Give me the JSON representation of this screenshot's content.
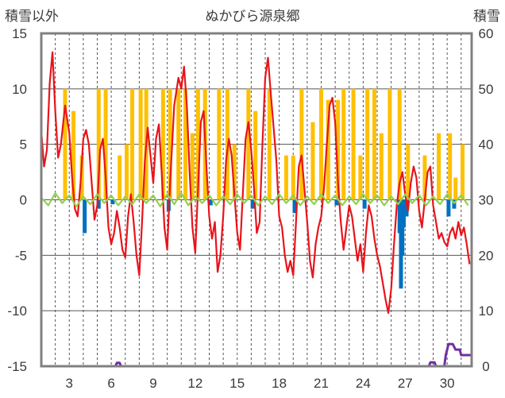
{
  "chart_data": {
    "type": "line",
    "title": "ぬかびら源泉郷",
    "ylabel_left": "積雪以外",
    "ylabel_right": "積雪",
    "ylim_left": [
      -15,
      15
    ],
    "ylim_right": [
      0,
      60
    ],
    "yticks_left": [
      "15",
      "10",
      "5",
      "0",
      "-5",
      "-10",
      "-15"
    ],
    "yticks_right": [
      "60",
      "50",
      "40",
      "30",
      "20",
      "10",
      "0"
    ],
    "xlim": [
      1,
      31
    ],
    "xticks": [
      "3",
      "6",
      "9",
      "12",
      "15",
      "18",
      "21",
      "24",
      "27",
      "30"
    ],
    "grid": true,
    "colors": {
      "temperature": "#e8141b",
      "sunshine": "#ffc000",
      "precipitation": "#0070c0",
      "wind": "#92d050",
      "snow_depth": "#7030a0",
      "frame": "#808080",
      "grid": "#555555"
    },
    "series": [
      {
        "name": "",
        "color": "#e8141b",
        "axis": "left",
        "points": [
          [
            1.0,
            6.2
          ],
          [
            1.2,
            3.0
          ],
          [
            1.4,
            4.5
          ],
          [
            1.6,
            10.5
          ],
          [
            1.8,
            13.3
          ],
          [
            2.0,
            8.0
          ],
          [
            2.2,
            3.8
          ],
          [
            2.4,
            5.0
          ],
          [
            2.7,
            8.5
          ],
          [
            3.0,
            6.0
          ],
          [
            3.2,
            2.0
          ],
          [
            3.4,
            -0.8
          ],
          [
            3.6,
            -1.5
          ],
          [
            3.8,
            1.5
          ],
          [
            4.0,
            5.5
          ],
          [
            4.2,
            6.3
          ],
          [
            4.4,
            5.0
          ],
          [
            4.6,
            1.5
          ],
          [
            4.8,
            -1.8
          ],
          [
            5.0,
            -0.5
          ],
          [
            5.2,
            4.5
          ],
          [
            5.4,
            5.5
          ],
          [
            5.6,
            2.0
          ],
          [
            5.8,
            -2.5
          ],
          [
            6.0,
            -4.0
          ],
          [
            6.2,
            -3.0
          ],
          [
            6.4,
            -1.0
          ],
          [
            6.6,
            -2.5
          ],
          [
            6.8,
            -4.5
          ],
          [
            7.0,
            -5.2
          ],
          [
            7.2,
            -1.5
          ],
          [
            7.4,
            0.5
          ],
          [
            7.6,
            -2.0
          ],
          [
            7.8,
            -5.0
          ],
          [
            8.0,
            -6.8
          ],
          [
            8.2,
            -2.0
          ],
          [
            8.4,
            3.5
          ],
          [
            8.6,
            6.5
          ],
          [
            8.8,
            4.0
          ],
          [
            9.0,
            1.5
          ],
          [
            9.2,
            5.5
          ],
          [
            9.4,
            6.8
          ],
          [
            9.6,
            2.5
          ],
          [
            9.8,
            -2.5
          ],
          [
            10.0,
            -4.5
          ],
          [
            10.2,
            1.5
          ],
          [
            10.5,
            8.5
          ],
          [
            10.8,
            11.0
          ],
          [
            11.0,
            10.0
          ],
          [
            11.2,
            12.0
          ],
          [
            11.4,
            8.5
          ],
          [
            11.6,
            2.5
          ],
          [
            11.8,
            -2.5
          ],
          [
            12.0,
            -4.8
          ],
          [
            12.2,
            1.0
          ],
          [
            12.4,
            7.0
          ],
          [
            12.6,
            8.0
          ],
          [
            12.8,
            3.0
          ],
          [
            13.0,
            -1.5
          ],
          [
            13.2,
            -3.5
          ],
          [
            13.4,
            -2.0
          ],
          [
            13.6,
            -6.5
          ],
          [
            13.8,
            -5.0
          ],
          [
            14.0,
            -1.5
          ],
          [
            14.2,
            3.5
          ],
          [
            14.4,
            5.5
          ],
          [
            14.6,
            4.0
          ],
          [
            14.8,
            0.5
          ],
          [
            15.0,
            -3.0
          ],
          [
            15.2,
            -4.5
          ],
          [
            15.4,
            0.5
          ],
          [
            15.6,
            5.5
          ],
          [
            15.8,
            7.0
          ],
          [
            16.0,
            4.5
          ],
          [
            16.2,
            1.0
          ],
          [
            16.4,
            -3.0
          ],
          [
            16.6,
            -2.0
          ],
          [
            16.8,
            5.0
          ],
          [
            17.0,
            11.0
          ],
          [
            17.2,
            12.8
          ],
          [
            17.4,
            9.5
          ],
          [
            17.6,
            6.5
          ],
          [
            17.8,
            3.5
          ],
          [
            18.0,
            -1.5
          ],
          [
            18.2,
            -2.5
          ],
          [
            18.4,
            -5.0
          ],
          [
            18.6,
            -6.5
          ],
          [
            18.8,
            -5.5
          ],
          [
            19.0,
            -6.8
          ],
          [
            19.2,
            -2.0
          ],
          [
            19.4,
            3.0
          ],
          [
            19.6,
            4.0
          ],
          [
            19.8,
            1.0
          ],
          [
            20.0,
            -2.0
          ],
          [
            20.2,
            -5.5
          ],
          [
            20.4,
            -7.0
          ],
          [
            20.6,
            -4.0
          ],
          [
            20.8,
            -2.5
          ],
          [
            21.0,
            -1.5
          ],
          [
            21.2,
            1.0
          ],
          [
            21.4,
            5.0
          ],
          [
            21.6,
            8.5
          ],
          [
            21.8,
            9.2
          ],
          [
            22.0,
            7.0
          ],
          [
            22.2,
            1.5
          ],
          [
            22.4,
            -2.0
          ],
          [
            22.6,
            -4.5
          ],
          [
            22.8,
            -2.5
          ],
          [
            23.0,
            -0.5
          ],
          [
            23.2,
            -1.5
          ],
          [
            23.4,
            -3.5
          ],
          [
            23.6,
            -5.5
          ],
          [
            23.8,
            -4.0
          ],
          [
            24.0,
            -6.5
          ],
          [
            24.2,
            -3.0
          ],
          [
            24.4,
            -0.5
          ],
          [
            24.6,
            -1.5
          ],
          [
            24.8,
            -3.5
          ],
          [
            25.0,
            -5.0
          ],
          [
            25.2,
            -6.0
          ],
          [
            25.4,
            -7.5
          ],
          [
            25.6,
            -9.0
          ],
          [
            25.8,
            -10.2
          ],
          [
            26.0,
            -8.0
          ],
          [
            26.2,
            -4.0
          ],
          [
            26.4,
            -0.5
          ],
          [
            26.6,
            1.5
          ],
          [
            26.8,
            2.5
          ],
          [
            27.0,
            0.5
          ],
          [
            27.2,
            -1.0
          ],
          [
            27.4,
            1.5
          ],
          [
            27.6,
            3.0
          ],
          [
            27.8,
            2.0
          ],
          [
            28.0,
            -1.0
          ],
          [
            28.2,
            -2.5
          ],
          [
            28.4,
            0.0
          ],
          [
            28.6,
            2.5
          ],
          [
            28.8,
            3.0
          ],
          [
            29.0,
            -0.5
          ],
          [
            29.2,
            -2.0
          ],
          [
            29.4,
            -3.5
          ],
          [
            29.6,
            -3.0
          ],
          [
            29.8,
            -3.8
          ],
          [
            30.0,
            -4.2
          ],
          [
            30.2,
            -3.0
          ],
          [
            30.4,
            -2.5
          ],
          [
            30.6,
            -3.5
          ],
          [
            30.8,
            -2.0
          ],
          [
            31.0,
            -3.2
          ],
          [
            31.2,
            -2.5
          ],
          [
            31.4,
            -4.0
          ],
          [
            31.6,
            -5.8
          ]
        ]
      },
      {
        "name": "",
        "color": "#92d050",
        "axis": "left",
        "points": [
          [
            1.0,
            0.2
          ],
          [
            1.5,
            -0.5
          ],
          [
            2.0,
            0.6
          ],
          [
            2.5,
            -0.3
          ],
          [
            3.0,
            0.4
          ],
          [
            3.5,
            -0.6
          ],
          [
            4.0,
            0.3
          ],
          [
            4.5,
            -0.4
          ],
          [
            5.0,
            0.5
          ],
          [
            5.5,
            -0.3
          ],
          [
            6.0,
            0.4
          ],
          [
            6.5,
            -0.5
          ],
          [
            7.0,
            0.3
          ],
          [
            7.5,
            -0.4
          ],
          [
            8.0,
            0.5
          ],
          [
            8.5,
            -0.3
          ],
          [
            9.0,
            0.4
          ],
          [
            9.5,
            -0.6
          ],
          [
            10.0,
            0.5
          ],
          [
            10.5,
            -0.4
          ],
          [
            11.0,
            0.6
          ],
          [
            11.5,
            -0.5
          ],
          [
            12.0,
            0.3
          ],
          [
            12.5,
            -0.3
          ],
          [
            13.0,
            0.4
          ],
          [
            13.5,
            -0.5
          ],
          [
            14.0,
            0.3
          ],
          [
            14.5,
            -0.4
          ],
          [
            15.0,
            0.5
          ],
          [
            15.5,
            -0.3
          ],
          [
            16.0,
            0.4
          ],
          [
            16.5,
            -0.5
          ],
          [
            17.0,
            0.3
          ],
          [
            17.5,
            -0.4
          ],
          [
            18.0,
            0.5
          ],
          [
            18.5,
            -0.3
          ],
          [
            19.0,
            0.4
          ],
          [
            19.5,
            -0.5
          ],
          [
            20.0,
            0.3
          ],
          [
            20.5,
            -0.4
          ],
          [
            21.0,
            0.5
          ],
          [
            21.5,
            -0.3
          ],
          [
            22.0,
            0.4
          ],
          [
            22.5,
            -0.5
          ],
          [
            23.0,
            0.3
          ],
          [
            23.5,
            -0.4
          ],
          [
            24.0,
            0.5
          ],
          [
            24.5,
            -0.3
          ],
          [
            25.0,
            0.4
          ],
          [
            25.5,
            -0.5
          ],
          [
            26.0,
            0.3
          ],
          [
            26.5,
            -0.4
          ],
          [
            27.0,
            0.5
          ],
          [
            27.5,
            -0.3
          ],
          [
            28.0,
            0.4
          ],
          [
            28.5,
            -0.5
          ],
          [
            29.0,
            0.3
          ],
          [
            29.5,
            -0.4
          ],
          [
            30.0,
            0.5
          ],
          [
            30.5,
            -0.3
          ],
          [
            31.0,
            0.4
          ],
          [
            31.5,
            -0.5
          ]
        ]
      },
      {
        "name": "",
        "color": "#7030a0",
        "axis": "right",
        "points": [
          [
            1.0,
            0
          ],
          [
            6.3,
            0
          ],
          [
            6.4,
            0.6
          ],
          [
            6.6,
            0.6
          ],
          [
            6.7,
            0
          ],
          [
            28.7,
            0
          ],
          [
            28.8,
            0.7
          ],
          [
            29.1,
            0.7
          ],
          [
            29.2,
            0
          ],
          [
            29.8,
            0
          ],
          [
            29.9,
            2.0
          ],
          [
            30.1,
            4.0
          ],
          [
            30.4,
            4.0
          ],
          [
            30.6,
            3.0
          ],
          [
            30.9,
            3.0
          ],
          [
            31.0,
            2.0
          ],
          [
            31.7,
            2.0
          ]
        ]
      }
    ],
    "bars": [
      {
        "name": "",
        "color": "#ffc000",
        "axis": "left",
        "values": [
          [
            2.7,
            10
          ],
          [
            3.3,
            8
          ],
          [
            3.9,
            4
          ],
          [
            5.1,
            10
          ],
          [
            5.6,
            10
          ],
          [
            6.6,
            4
          ],
          [
            7.1,
            5
          ],
          [
            7.5,
            10
          ],
          [
            8.1,
            10
          ],
          [
            8.5,
            10
          ],
          [
            9.7,
            10
          ],
          [
            10.2,
            10
          ],
          [
            10.8,
            10
          ],
          [
            11.3,
            10
          ],
          [
            11.8,
            6
          ],
          [
            12.2,
            10
          ],
          [
            12.7,
            10
          ],
          [
            13.7,
            10
          ],
          [
            14.3,
            10
          ],
          [
            14.8,
            5
          ],
          [
            15.8,
            10
          ],
          [
            16.3,
            8
          ],
          [
            17.3,
            10
          ],
          [
            18.5,
            4
          ],
          [
            19.0,
            4
          ],
          [
            19.6,
            10
          ],
          [
            20.4,
            7
          ],
          [
            21.0,
            10
          ],
          [
            21.5,
            9
          ],
          [
            22.2,
            9
          ],
          [
            22.6,
            10
          ],
          [
            23.3,
            10
          ],
          [
            23.8,
            4
          ],
          [
            24.3,
            10
          ],
          [
            24.8,
            10
          ],
          [
            25.3,
            6
          ],
          [
            25.9,
            10
          ],
          [
            26.6,
            10
          ],
          [
            27.2,
            5
          ],
          [
            28.4,
            4
          ],
          [
            29.4,
            6
          ],
          [
            30.2,
            6
          ],
          [
            30.6,
            2
          ],
          [
            31.1,
            5
          ]
        ]
      },
      {
        "name": "",
        "color": "#0070c0",
        "axis": "left",
        "values": [
          [
            4.1,
            -3.0
          ],
          [
            5.1,
            -0.8
          ],
          [
            6.1,
            -0.4
          ],
          [
            10.1,
            -1.0
          ],
          [
            13.1,
            -0.5
          ],
          [
            16.1,
            -0.8
          ],
          [
            19.1,
            -1.2
          ],
          [
            22.1,
            -0.5
          ],
          [
            24.1,
            -0.8
          ],
          [
            26.6,
            -3.0
          ],
          [
            26.7,
            -8.0
          ],
          [
            26.8,
            -5.0
          ],
          [
            26.9,
            -2.5
          ],
          [
            27.1,
            -1.5
          ],
          [
            30.1,
            -1.5
          ],
          [
            30.5,
            -0.8
          ]
        ]
      }
    ]
  }
}
